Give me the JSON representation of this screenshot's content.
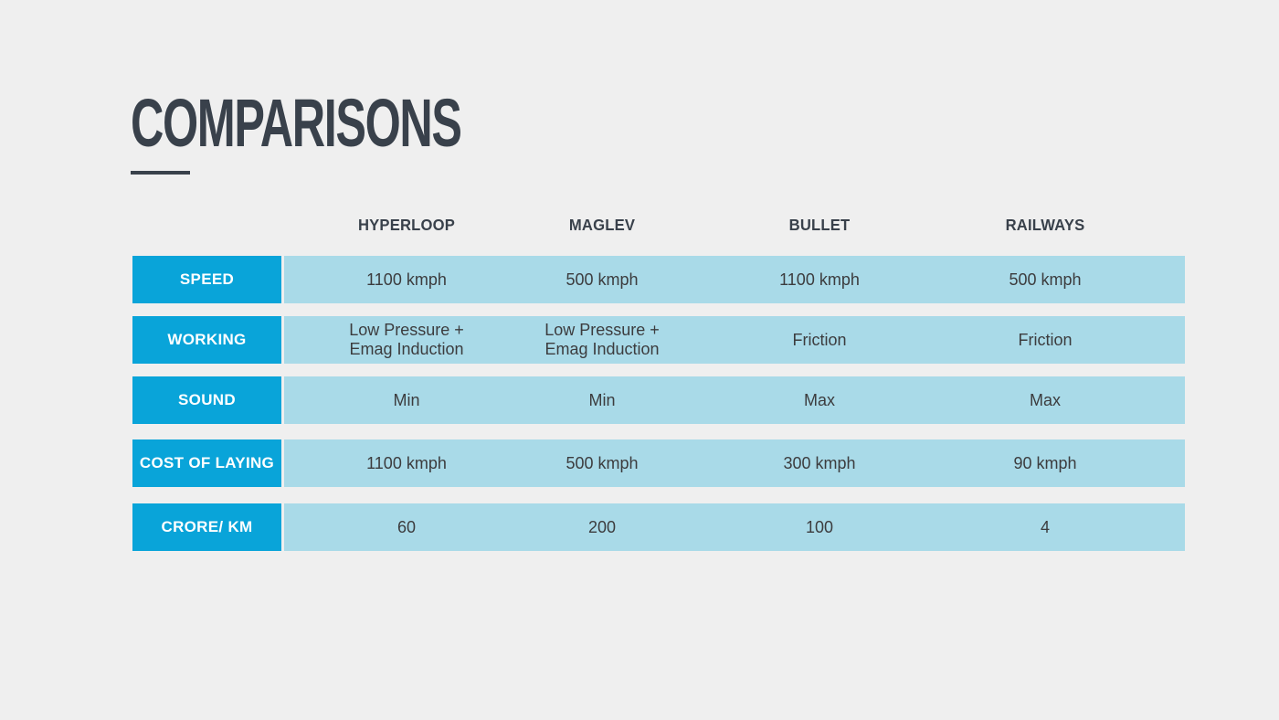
{
  "slide": {
    "title": "COMPARISONS",
    "colors": {
      "accent_blue": "#09a4d9",
      "light_blue": "#a9dae8",
      "background": "#efefef",
      "title_dark": "#39414b"
    },
    "table": {
      "columns": [
        "HYPERLOOP",
        "MAGLEV",
        "BULLET",
        "RAILWAYS"
      ],
      "rows": [
        {
          "label": "SPEED",
          "values": [
            "1100 kmph",
            "500 kmph",
            "1100 kmph",
            "500 kmph"
          ]
        },
        {
          "label": "WORKING",
          "values": [
            "Low Pressure +\nEmag Induction",
            "Low Pressure +\nEmag Induction",
            "Friction",
            "Friction"
          ]
        },
        {
          "label": "SOUND",
          "values": [
            "Min",
            "Min",
            "Max",
            "Max"
          ]
        },
        {
          "label": "COST OF LAYING",
          "values": [
            "1100 kmph",
            "500 kmph",
            "300 kmph",
            "90 kmph"
          ]
        },
        {
          "label": "CRORE/ KM",
          "values": [
            "60",
            "200",
            "100",
            "4"
          ]
        }
      ]
    }
  }
}
